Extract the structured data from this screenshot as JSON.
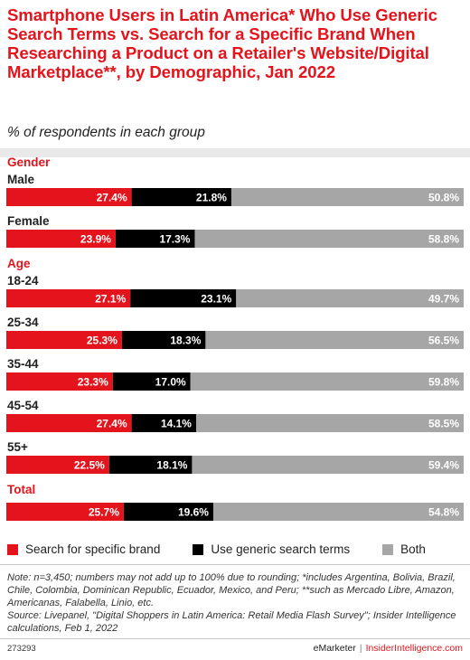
{
  "title": "Smartphone Users in Latin America* Who Use Generic Search Terms vs. Search for a Specific Brand When Researching a Product on a Retailer's Website/Digital Marketplace**, by Demographic, Jan 2022",
  "subtitle": "% of respondents in each group",
  "colors": {
    "accent": "#e3141c",
    "specific_brand": "#e3141c",
    "generic_terms": "#000000",
    "both": "#a6a6a6"
  },
  "chart_data": {
    "type": "bar",
    "orientation": "horizontal",
    "stacked": true,
    "groups": [
      "Gender",
      "Age",
      "Total"
    ],
    "categories": [
      "Male",
      "Female",
      "18-24",
      "25-34",
      "35-44",
      "45-54",
      "55+",
      ""
    ],
    "category_groups": [
      "Gender",
      "Gender",
      "Age",
      "Age",
      "Age",
      "Age",
      "Age",
      "Total"
    ],
    "series": [
      {
        "name": "Search for specific brand",
        "values": [
          27.4,
          23.9,
          27.1,
          25.3,
          23.3,
          27.4,
          22.5,
          25.7
        ]
      },
      {
        "name": "Use generic search terms",
        "values": [
          21.8,
          17.3,
          23.1,
          18.3,
          17.0,
          14.1,
          18.1,
          19.6
        ]
      },
      {
        "name": "Both",
        "values": [
          50.8,
          58.8,
          49.7,
          56.5,
          59.8,
          58.5,
          59.4,
          54.8
        ]
      }
    ],
    "value_format": "{v}%",
    "xlim": [
      0,
      100
    ],
    "legend_position": "bottom",
    "grid": false
  },
  "legend": [
    {
      "label": "Search for specific brand",
      "color": "#e3141c"
    },
    {
      "label": "Use generic search terms",
      "color": "#000000"
    },
    {
      "label": "Both",
      "color": "#a6a6a6"
    }
  ],
  "note": "Note: n=3,450; numbers may not add up to 100% due to rounding; *includes Argentina, Bolivia, Brazil, Chile, Colombia, Dominican Republic, Ecuador, Mexico, and Peru; **such as Mercado Libre, Amazon, Americanas, Falabella, Linio, etc.",
  "source": "Source: Livepanel, \"Digital Shoppers in Latin America: Retail Media Flash Survey\"; Insider Intelligence calculations, Feb 1, 2022",
  "footer": {
    "chart_id": "273293",
    "brand_left": "eMarketer",
    "separator": "|",
    "brand_right": "InsiderIntelligence.com"
  }
}
